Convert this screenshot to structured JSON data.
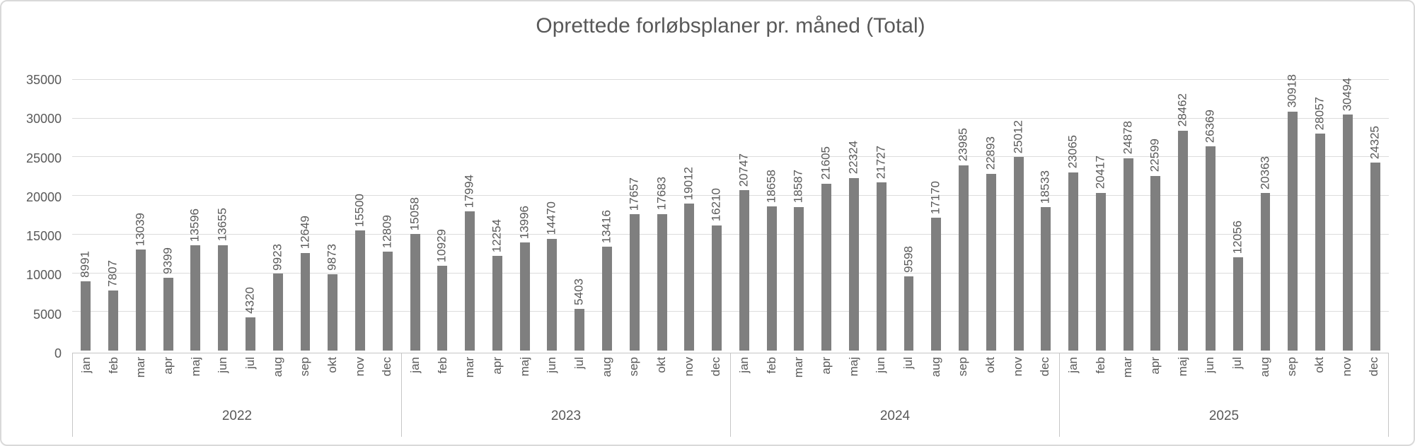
{
  "chart_data": {
    "type": "bar",
    "title": "Oprettede forløbsplaner pr. måned (Total)",
    "ylim": [
      0,
      35000
    ],
    "yticks": [
      0,
      5000,
      10000,
      15000,
      20000,
      25000,
      30000,
      35000
    ],
    "grid": true,
    "legend": "none",
    "bar_color": "#7f7f7f",
    "text_color": "#595959",
    "data_label_rotation": "vertical",
    "year_groups": [
      {
        "year": "2022",
        "months": [
          "jan",
          "feb",
          "mar",
          "apr",
          "maj",
          "jun",
          "jul",
          "aug",
          "sep",
          "okt",
          "nov",
          "dec"
        ],
        "values": [
          8991,
          7807,
          13039,
          9399,
          13596,
          13655,
          4320,
          9923,
          12649,
          9873,
          15500,
          12809
        ]
      },
      {
        "year": "2023",
        "months": [
          "jan",
          "feb",
          "mar",
          "apr",
          "maj",
          "jun",
          "jul",
          "aug",
          "sep",
          "okt",
          "nov",
          "dec"
        ],
        "values": [
          15058,
          10929,
          17994,
          12254,
          13996,
          14470,
          5403,
          13416,
          17657,
          17683,
          19012,
          16210
        ]
      },
      {
        "year": "2024",
        "months": [
          "jan",
          "feb",
          "mar",
          "apr",
          "maj",
          "jun",
          "jul",
          "aug",
          "sep",
          "okt",
          "nov",
          "dec"
        ],
        "values": [
          20747,
          18658,
          18587,
          21605,
          22324,
          21727,
          9598,
          17170,
          23985,
          22893,
          25012,
          18533
        ]
      },
      {
        "year": "2025",
        "months": [
          "jan",
          "feb",
          "mar",
          "apr",
          "maj",
          "jun",
          "jul",
          "aug",
          "sep",
          "okt",
          "nov",
          "dec"
        ],
        "values": [
          23065,
          20417,
          24878,
          22599,
          28462,
          26369,
          12056,
          20363,
          30918,
          28057,
          30494,
          24325
        ]
      }
    ]
  }
}
